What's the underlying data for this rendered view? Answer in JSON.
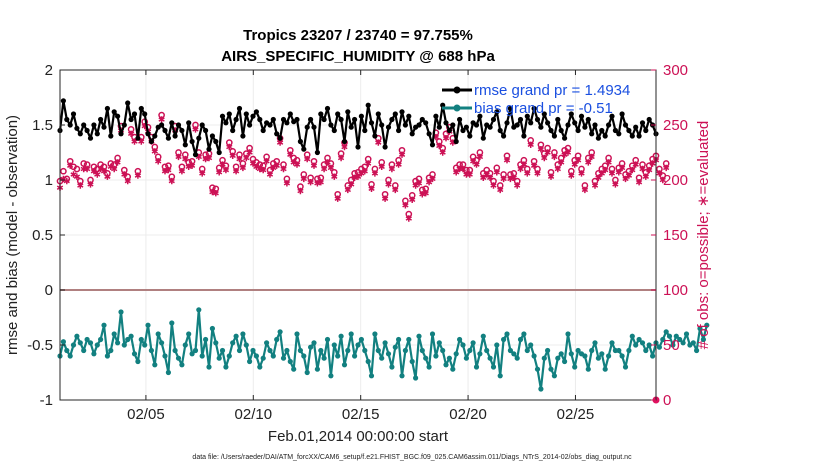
{
  "chart_data": {
    "type": "line",
    "title": "Tropics 23207 / 23740 = 97.755%",
    "subtitle": "AIRS_SPECIFIC_HUMIDITY @ 688 hPa",
    "xlabel": "Feb.01,2014 00:00:00 start",
    "ylabel": "rmse and bias (model - observation)",
    "y2label": "# of obs: o=possible; ∗=evaluated",
    "footnote": "data file: /Users/raeder/DAI/ATM_forcXX/CAM6_setup/f.e21.FHIST_BGC.f09_025.CAM6assim.011/Diags_NTrS_2014-02/obs_diag_output.nc",
    "x_ticks": [
      {
        "day": 5,
        "label": "02/05"
      },
      {
        "day": 10,
        "label": "02/10"
      },
      {
        "day": 15,
        "label": "02/15"
      },
      {
        "day": 20,
        "label": "02/20"
      },
      {
        "day": 25,
        "label": "02/25"
      }
    ],
    "xlim": [
      1,
      28.75
    ],
    "ylim": [
      -1,
      2
    ],
    "y_ticks": [
      "-1",
      "-0.5",
      "0",
      "0.5",
      "1",
      "1.5",
      "2"
    ],
    "y2lim": [
      0,
      300
    ],
    "y2_ticks": [
      "0",
      "50",
      "100",
      "150",
      "200",
      "250",
      "300"
    ],
    "series": [
      {
        "name": "rmse",
        "legend": "rmse grand pr = 1.4934",
        "color": "#000000",
        "values": [
          1.45,
          1.72,
          1.55,
          1.5,
          1.6,
          1.47,
          1.42,
          1.5,
          1.45,
          1.38,
          1.5,
          1.42,
          1.55,
          1.48,
          1.65,
          1.4,
          1.62,
          1.58,
          1.42,
          1.5,
          1.7,
          1.55,
          1.6,
          1.38,
          1.65,
          1.6,
          1.42,
          1.35,
          1.4,
          1.48,
          1.5,
          1.45,
          1.38,
          1.52,
          1.4,
          1.5,
          1.45,
          1.32,
          1.52,
          1.35,
          1.23,
          1.38,
          1.5,
          1.45,
          1.28,
          1.4,
          1.35,
          1.25,
          1.58,
          1.52,
          1.6,
          1.45,
          1.55,
          1.65,
          1.4,
          1.6,
          1.5,
          1.58,
          1.62,
          1.55,
          1.45,
          1.52,
          1.5,
          1.55,
          1.42,
          1.38,
          1.55,
          1.52,
          1.6,
          1.53,
          1.55,
          1.35,
          1.28,
          1.48,
          1.55,
          1.48,
          1.25,
          1.6,
          1.55,
          1.65,
          1.5,
          1.45,
          1.6,
          1.55,
          1.35,
          1.62,
          1.48,
          1.55,
          1.3,
          1.58,
          1.45,
          1.68,
          1.52,
          1.4,
          1.6,
          1.5,
          1.3,
          1.48,
          1.55,
          1.6,
          1.45,
          1.62,
          1.5,
          1.58,
          1.42,
          1.48,
          1.5,
          1.55,
          1.52,
          1.42,
          1.32,
          1.58,
          1.48,
          1.68,
          1.52,
          1.45,
          1.5,
          1.35,
          1.55,
          1.45,
          1.48,
          1.4,
          1.52,
          1.5,
          1.58,
          1.38,
          1.5,
          1.48,
          1.55,
          1.62,
          1.45,
          1.4,
          1.52,
          1.65,
          1.48,
          1.5,
          1.55,
          1.4,
          1.58,
          1.52,
          1.65,
          1.55,
          1.48,
          1.6,
          1.52,
          1.45,
          1.4,
          1.55,
          1.45,
          1.38,
          1.5,
          1.6,
          1.52,
          1.45,
          1.58,
          1.48,
          1.55,
          1.42,
          1.5,
          1.38,
          1.45,
          1.4,
          1.5,
          1.58,
          1.45,
          1.42,
          1.6,
          1.5,
          1.45,
          1.4,
          1.48,
          1.4,
          1.52,
          1.45,
          1.55,
          1.5,
          1.42
        ]
      },
      {
        "name": "bias",
        "legend": "bias grand pr = -0.51",
        "color": "#128080",
        "values": [
          -0.6,
          -0.47,
          -0.55,
          -0.6,
          -0.5,
          -0.42,
          -0.48,
          -0.55,
          -0.45,
          -0.48,
          -0.58,
          -0.5,
          -0.45,
          -0.32,
          -0.6,
          -0.55,
          -0.4,
          -0.48,
          -0.2,
          -0.5,
          -0.45,
          -0.42,
          -0.58,
          -0.65,
          -0.45,
          -0.5,
          -0.32,
          -0.55,
          -0.68,
          -0.4,
          -0.48,
          -0.6,
          -0.75,
          -0.3,
          -0.55,
          -0.62,
          -0.68,
          -0.5,
          -0.4,
          -0.58,
          -0.55,
          -0.18,
          -0.6,
          -0.45,
          -0.7,
          -0.35,
          -0.48,
          -0.62,
          -0.55,
          -0.7,
          -0.6,
          -0.48,
          -0.42,
          -0.55,
          -0.4,
          -0.5,
          -0.65,
          -0.55,
          -0.6,
          -0.7,
          -0.62,
          -0.48,
          -0.55,
          -0.6,
          -0.45,
          -0.38,
          -0.62,
          -0.55,
          -0.65,
          -0.72,
          -0.4,
          -0.55,
          -0.6,
          -0.75,
          -0.52,
          -0.48,
          -0.72,
          -0.55,
          -0.62,
          -0.45,
          -0.78,
          -0.5,
          -0.6,
          -0.42,
          -0.68,
          -0.55,
          -0.4,
          -0.6,
          -0.5,
          -0.45,
          -0.55,
          -0.65,
          -0.78,
          -0.4,
          -0.55,
          -0.62,
          -0.48,
          -0.58,
          -0.7,
          -0.52,
          -0.45,
          -0.78,
          -0.55,
          -0.45,
          -0.65,
          -0.8,
          -0.42,
          -0.55,
          -0.62,
          -0.7,
          -0.4,
          -0.6,
          -0.48,
          -0.55,
          -0.68,
          -0.62,
          -0.72,
          -0.58,
          -0.45,
          -0.5,
          -0.62,
          -0.55,
          -0.48,
          -0.7,
          -0.58,
          -0.42,
          -0.55,
          -0.62,
          -0.7,
          -0.5,
          -0.78,
          -0.45,
          -0.4,
          -0.55,
          -0.58,
          -0.62,
          -0.45,
          -0.4,
          -0.55,
          -0.5,
          -0.6,
          -0.72,
          -0.9,
          -0.62,
          -0.55,
          -0.72,
          -0.78,
          -0.62,
          -0.58,
          -0.65,
          -0.4,
          -0.58,
          -0.7,
          -0.55,
          -0.58,
          -0.6,
          -0.72,
          -0.55,
          -0.48,
          -0.62,
          -0.58,
          -0.72,
          -0.6,
          -0.48,
          -0.55,
          -0.55,
          -0.6,
          -0.7,
          -0.55,
          -0.42,
          -0.5,
          -0.45,
          -0.48,
          -0.55,
          -0.5,
          -0.6,
          -0.48,
          -0.52,
          -0.45,
          -0.38,
          -0.42,
          -0.5,
          -0.42,
          -0.45,
          -0.48,
          -0.4,
          -0.5,
          -0.48,
          -0.55,
          -0.35,
          -0.45,
          -0.32
        ]
      },
      {
        "name": "obs possible",
        "marker": "o",
        "axis": "right",
        "color": "#cc1155",
        "values": [
          199,
          208,
          201,
          217,
          212,
          210,
          199,
          215,
          214,
          200,
          212,
          210,
          214,
          212,
          206,
          215,
          214,
          220,
          249,
          209,
          203,
          246,
          239,
          208,
          239,
          253,
          248,
          239,
          230,
          221,
          259,
          212,
          213,
          203,
          249,
          225,
          212,
          223,
          216,
          217,
          250,
          225,
          210,
          223,
          224,
          193,
          192,
          211,
          218,
          213,
          234,
          226,
          212,
          223,
          215,
          224,
          229,
          219,
          216,
          214,
          213,
          221,
          209,
          215,
          217,
          238,
          214,
          201,
          227,
          220,
          218,
          194,
          205,
          223,
          202,
          217,
          201,
          202,
          214,
          220,
          215,
          207,
          187,
          224,
          234,
          195,
          200,
          206,
          207,
          210,
          212,
          219,
          196,
          210,
          238,
          216,
          187,
          200,
          214,
          195,
          218,
          227,
          181,
          169,
          186,
          199,
          201,
          191,
          192,
          202,
          205,
          243,
          235,
          229,
          242,
          248,
          238,
          211,
          214,
          214,
          209,
          209,
          221,
          218,
          225,
          206,
          209,
          206,
          199,
          211,
          195,
          205,
          222,
          205,
          206,
          199,
          214,
          218,
          210,
          236,
          217,
          210,
          232,
          224,
          229,
          207,
          225,
          214,
          220,
          227,
          229,
          208,
          218,
          222,
          210,
          195,
          220,
          225,
          199,
          206,
          210,
          213,
          220,
          210,
          200,
          211,
          215,
          205,
          208,
          213,
          218,
          202,
          214,
          207,
          213,
          219,
          222,
          210,
          204,
          215
        ]
      },
      {
        "name": "obs evaluated",
        "marker": "*",
        "axis": "right",
        "color": "#cc1155",
        "values": [
          193,
          201,
          199,
          213,
          205,
          203,
          195,
          210,
          210,
          196,
          208,
          205,
          210,
          208,
          203,
          212,
          210,
          216,
          245,
          205,
          199,
          242,
          235,
          204,
          235,
          249,
          244,
          235,
          226,
          217,
          255,
          208,
          209,
          199,
          245,
          221,
          208,
          219,
          212,
          213,
          246,
          221,
          206,
          219,
          220,
          189,
          188,
          207,
          214,
          209,
          230,
          222,
          208,
          219,
          211,
          220,
          225,
          215,
          212,
          210,
          209,
          217,
          205,
          211,
          213,
          234,
          210,
          197,
          223,
          216,
          214,
          190,
          201,
          219,
          198,
          213,
          197,
          198,
          210,
          216,
          211,
          203,
          183,
          220,
          230,
          191,
          196,
          202,
          203,
          206,
          208,
          215,
          192,
          206,
          234,
          212,
          183,
          196,
          210,
          191,
          214,
          223,
          177,
          165,
          182,
          195,
          197,
          187,
          188,
          198,
          201,
          239,
          231,
          225,
          238,
          244,
          234,
          207,
          210,
          210,
          205,
          205,
          217,
          214,
          221,
          202,
          205,
          202,
          195,
          207,
          191,
          201,
          218,
          201,
          202,
          195,
          210,
          214,
          206,
          232,
          213,
          206,
          228,
          220,
          225,
          203,
          221,
          210,
          216,
          223,
          225,
          204,
          214,
          218,
          206,
          191,
          216,
          221,
          195,
          202,
          206,
          209,
          216,
          206,
          196,
          207,
          211,
          201,
          204,
          209,
          214,
          198,
          210,
          203,
          209,
          215,
          218,
          206,
          200,
          211
        ]
      }
    ],
    "zero_line": 0
  }
}
